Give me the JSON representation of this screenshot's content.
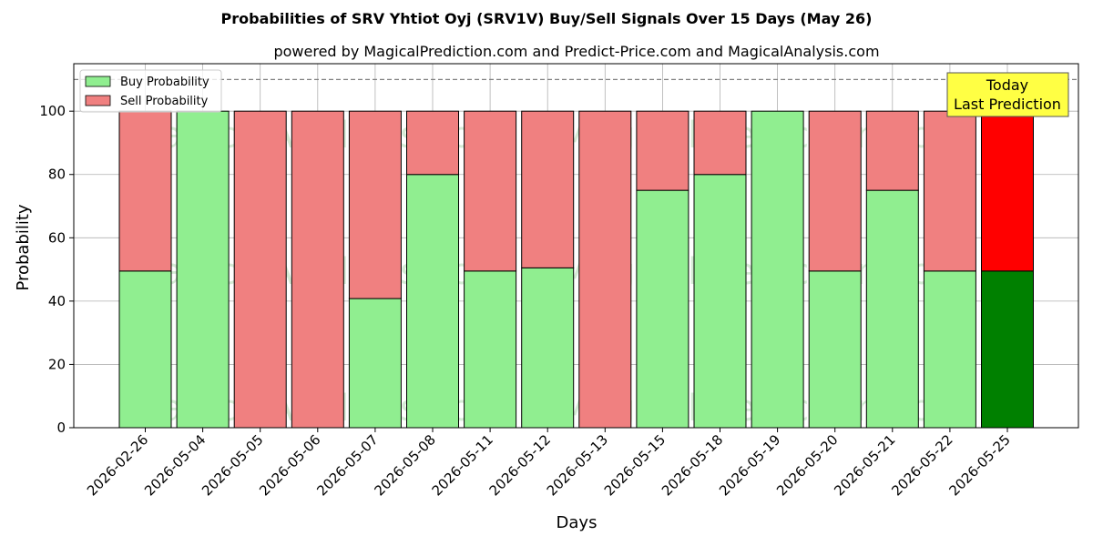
{
  "chart_data": {
    "type": "bar",
    "stacked": true,
    "title": "Probabilities of SRV Yhtiot Oyj (SRV1V) Buy/Sell Signals Over 15 Days (May 26)",
    "subtitle": "powered by MagicalPrediction.com and Predict-Price.com and MagicalAnalysis.com",
    "xlabel": "Days",
    "ylabel": "Probability",
    "ylim": [
      0,
      115
    ],
    "yticks": [
      0,
      20,
      40,
      60,
      80,
      100
    ],
    "reference_line": 110,
    "grid": true,
    "legend_position": "upper-left",
    "categories": [
      "2026-02-26",
      "2026-05-04",
      "2026-05-05",
      "2026-05-06",
      "2026-05-07",
      "2026-05-08",
      "2026-05-11",
      "2026-05-12",
      "2026-05-13",
      "2026-05-15",
      "2026-05-18",
      "2026-05-19",
      "2026-05-20",
      "2026-05-21",
      "2026-05-22",
      "2026-05-25"
    ],
    "series": [
      {
        "name": "Buy Probability",
        "values": [
          49.5,
          100,
          0,
          0,
          40.8,
          80,
          49.5,
          50.5,
          0,
          75,
          80,
          100,
          49.5,
          75,
          49.5,
          49.5
        ]
      },
      {
        "name": "Sell Probability",
        "values": [
          50.5,
          0,
          100,
          100,
          59.2,
          20,
          50.5,
          49.5,
          100,
          25,
          20,
          0,
          50.5,
          25,
          50.5,
          50.5
        ]
      }
    ],
    "colors": {
      "buy": "#90ee90",
      "sell": "#f08080",
      "buy_highlight": "#008000",
      "sell_highlight": "#ff0000",
      "annotation_bg": "#ffff44"
    },
    "highlight_index": 15,
    "annotation": [
      "Today",
      "Last Prediction"
    ],
    "watermarks": [
      "MagicalAnalysis.com",
      "MagicalPrediction.com"
    ]
  }
}
